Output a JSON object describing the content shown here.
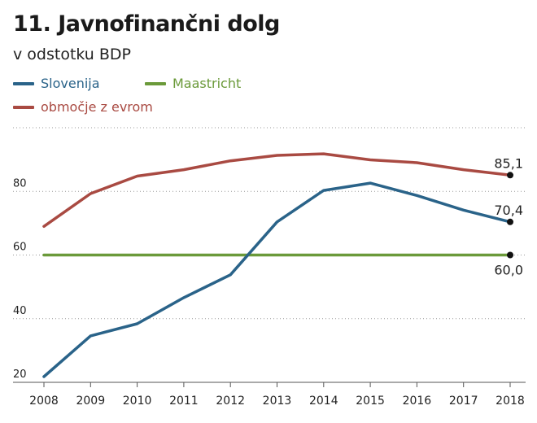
{
  "header": {
    "title": "11. Javnofinančni dolg",
    "subtitle": "v odstotku BDP"
  },
  "colors": {
    "slovenia": "#2a6389",
    "maastricht": "#6b9a3a",
    "eurozone": "#a94a42",
    "grid": "#999999",
    "axis": "#555555",
    "text": "#222222"
  },
  "chart_data": {
    "type": "line",
    "title": "11. Javnofinančni dolg",
    "subtitle": "v odstotku BDP",
    "xlabel": "",
    "ylabel": "",
    "x": [
      2008,
      2009,
      2010,
      2011,
      2012,
      2013,
      2014,
      2015,
      2016,
      2017,
      2018
    ],
    "x_tick_labels": [
      "2008",
      "2009",
      "2010",
      "2011",
      "2012",
      "2013",
      "2014",
      "2015",
      "2016",
      "2017",
      "2018"
    ],
    "y_ticks": [
      20,
      40,
      60,
      80
    ],
    "y_tick_labels": [
      "20",
      "40",
      "60",
      "80"
    ],
    "ylim": [
      20,
      100
    ],
    "xlim": [
      2008,
      2018
    ],
    "grid": "horizontal-dotted",
    "legend_position": "top-left",
    "series": [
      {
        "key": "slovenia",
        "name": "Slovenija",
        "values": [
          21.8,
          34.6,
          38.4,
          46.6,
          53.8,
          70.4,
          80.3,
          82.6,
          78.7,
          74.1,
          70.4
        ],
        "end_label": "70,4"
      },
      {
        "key": "maastricht",
        "name": "Maastricht",
        "values": [
          60,
          60,
          60,
          60,
          60,
          60,
          60,
          60,
          60,
          60,
          60
        ],
        "end_label": "60,0"
      },
      {
        "key": "eurozone",
        "name": "območje z evrom",
        "values": [
          69.0,
          79.3,
          84.8,
          86.8,
          89.6,
          91.3,
          91.8,
          89.9,
          89.0,
          86.8,
          85.1
        ],
        "end_label": "85,1"
      }
    ]
  }
}
